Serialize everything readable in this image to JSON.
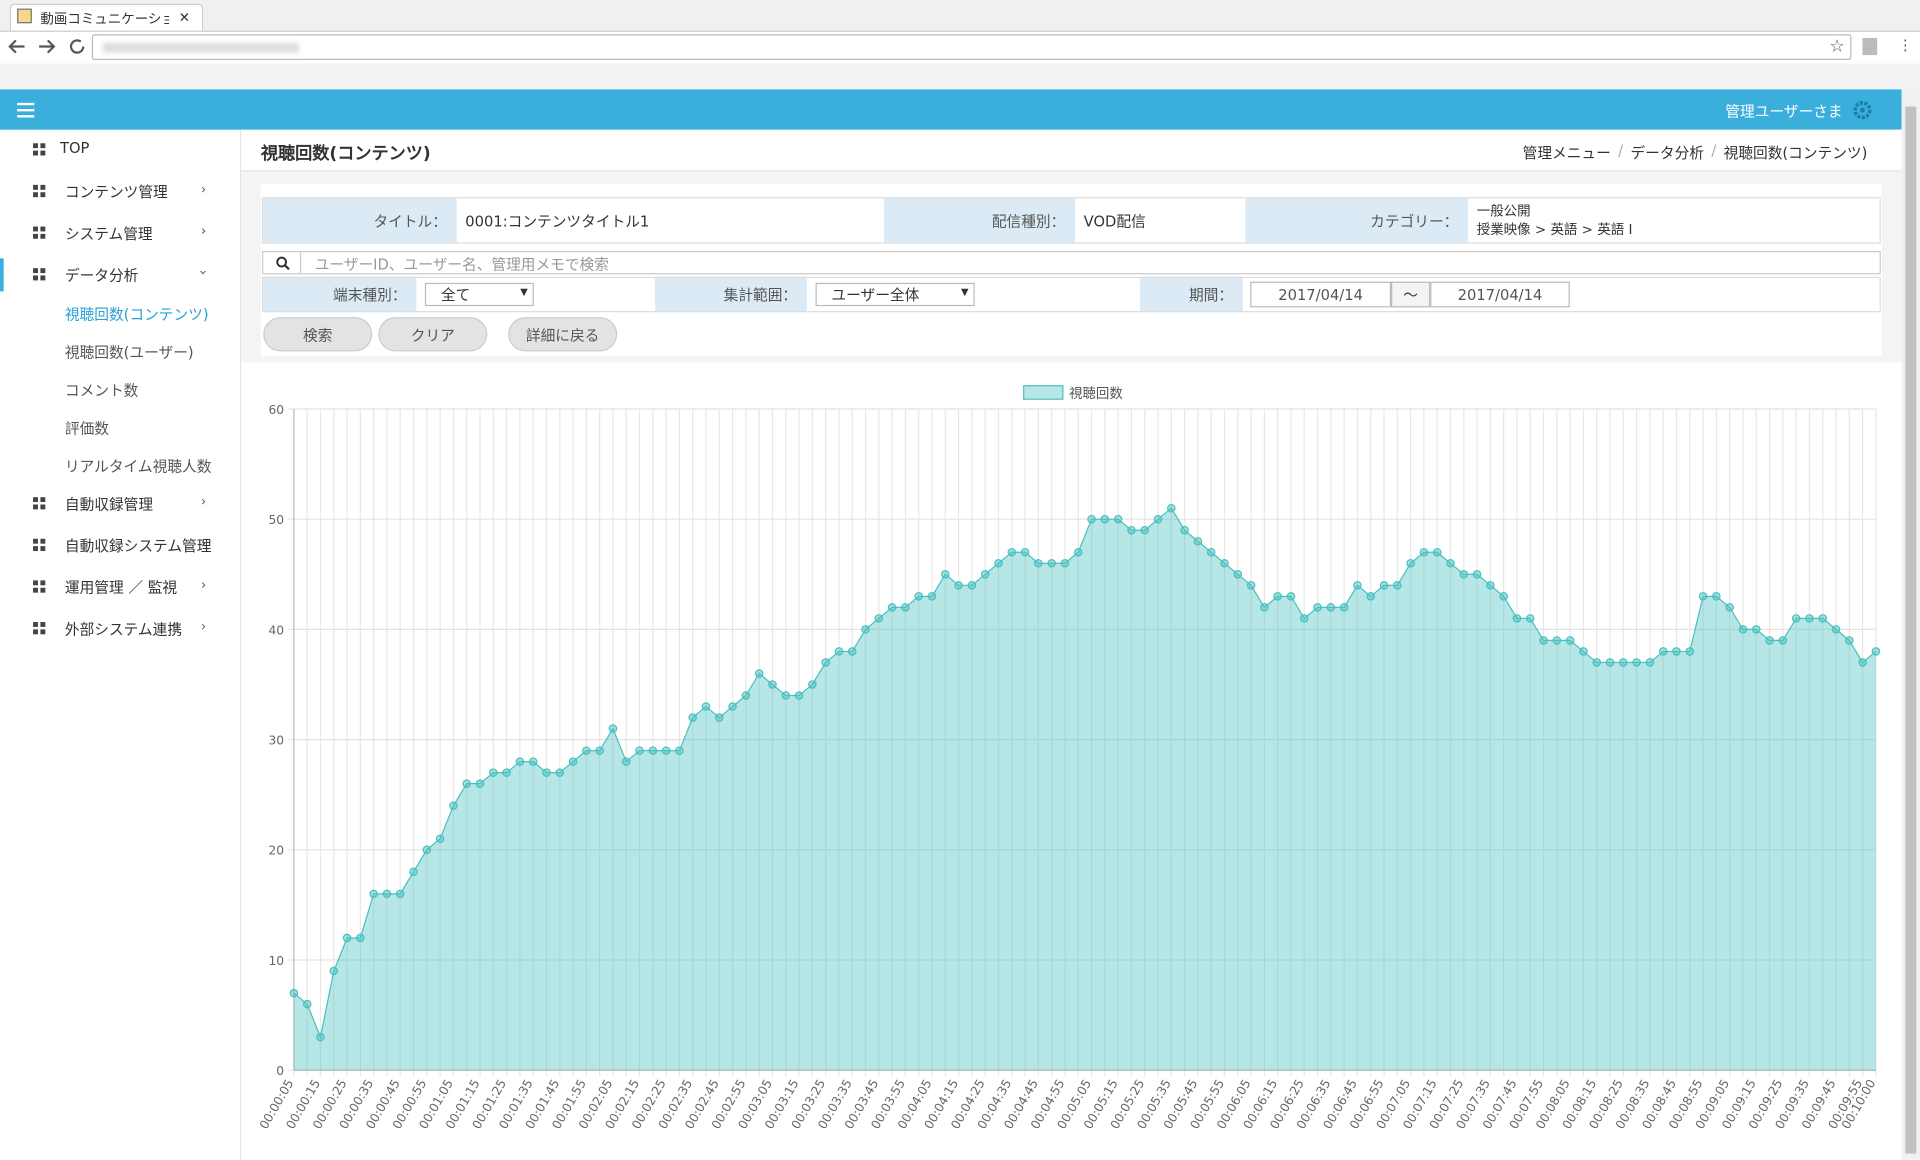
{
  "browser": {
    "tab_title": "動画コミュニケーションサーバー"
  },
  "header": {
    "user": "管理ユーザーさま"
  },
  "sidebar": {
    "items": [
      {
        "label": "TOP"
      },
      {
        "label": "コンテンツ管理"
      },
      {
        "label": "システム管理"
      },
      {
        "label": "データ分析",
        "children": [
          "視聴回数(コンテンツ)",
          "視聴回数(ユーザー)",
          "コメント数",
          "評価数",
          "リアルタイム視聴人数"
        ]
      },
      {
        "label": "自動収録管理"
      },
      {
        "label": "自動収録システム管理"
      },
      {
        "label": "運用管理 ／ 監視"
      },
      {
        "label": "外部システム連携"
      }
    ]
  },
  "page": {
    "title": "視聴回数(コンテンツ)",
    "breadcrumb": [
      "管理メニュー",
      "データ分析",
      "視聴回数(コンテンツ)"
    ],
    "breadcrumb_separator": "/"
  },
  "form": {
    "title_label": "タイトル：",
    "title_value": "0001:コンテンツタイトル1",
    "type_label": "配信種別：",
    "type_value": "VOD配信",
    "category_label": "カテゴリー：",
    "category_value": [
      "一般公開",
      "授業映像 > 英語 > 英語 I"
    ],
    "search_placeholder": "ユーザーID、ユーザー名、管理用メモで検索",
    "device_label": "端末種別：",
    "device_value": "全て",
    "scope_label": "集計範囲：",
    "scope_value": "ユーザー全体",
    "period_label": "期間：",
    "date_from": "2017/04/14",
    "date_sep": "〜",
    "date_to": "2017/04/14",
    "buttons": [
      "検索",
      "クリア",
      "詳細に戻る"
    ]
  },
  "chart_data": {
    "type": "line",
    "fill": true,
    "legend": "top",
    "color": "#4bc0c0",
    "grid": true,
    "series": [
      {
        "name": "視聴回数",
        "color": "#4bc0c0",
        "values": [
          7,
          6,
          3,
          9,
          12,
          12,
          16,
          16,
          16,
          18,
          20,
          21,
          24,
          26,
          26,
          27,
          27,
          28,
          28,
          27,
          27,
          28,
          29,
          29,
          31,
          28,
          29,
          29,
          29,
          29,
          32,
          33,
          32,
          33,
          34,
          36,
          35,
          34,
          34,
          35,
          37,
          38,
          38,
          40,
          41,
          42,
          42,
          43,
          43,
          45,
          44,
          44,
          45,
          46,
          47,
          47,
          46,
          46,
          46,
          47,
          50,
          50,
          50,
          49,
          49,
          50,
          51,
          49,
          48,
          47,
          46,
          45,
          44,
          42,
          43,
          43,
          41,
          42,
          42,
          42,
          44,
          43,
          44,
          44,
          46,
          47,
          47,
          46,
          45,
          45,
          44,
          43,
          41,
          41,
          39,
          39,
          39,
          38,
          37,
          37,
          37,
          37,
          37,
          38,
          38,
          38,
          43,
          43,
          42,
          40,
          40,
          39,
          39,
          41,
          41,
          41,
          40,
          39,
          37,
          38
        ]
      }
    ],
    "categories": [
      "00:00:05",
      null,
      "00:00:15",
      null,
      "00:00:25",
      null,
      "00:00:35",
      null,
      "00:00:45",
      null,
      "00:00:55",
      null,
      "00:01:05",
      null,
      "00:01:15",
      null,
      "00:01:25",
      null,
      "00:01:35",
      null,
      "00:01:45",
      null,
      "00:01:55",
      null,
      "00:02:05",
      null,
      "00:02:15",
      null,
      "00:02:25",
      null,
      "00:02:35",
      null,
      "00:02:45",
      null,
      "00:02:55",
      null,
      "00:03:05",
      null,
      "00:03:15",
      null,
      "00:03:25",
      null,
      "00:03:35",
      null,
      "00:03:45",
      null,
      "00:03:55",
      null,
      "00:04:05",
      null,
      "00:04:15",
      null,
      "00:04:25",
      null,
      "00:04:35",
      null,
      "00:04:45",
      null,
      "00:04:55",
      null,
      "00:05:05",
      null,
      "00:05:15",
      null,
      "00:05:25",
      null,
      "00:05:35",
      null,
      "00:05:45",
      null,
      "00:05:55",
      null,
      "00:06:05",
      null,
      "00:06:15",
      null,
      "00:06:25",
      null,
      "00:06:35",
      null,
      "00:06:45",
      null,
      "00:06:55",
      null,
      "00:07:05",
      null,
      "00:07:15",
      null,
      "00:07:25",
      null,
      "00:07:35",
      null,
      "00:07:45",
      null,
      "00:07:55",
      null,
      "00:08:05",
      null,
      "00:08:15",
      null,
      "00:08:25",
      null,
      "00:08:35",
      null,
      "00:08:45",
      null,
      "00:08:55",
      null,
      "00:09:05",
      null,
      "00:09:15",
      null,
      "00:09:25",
      null,
      "00:09:35",
      null,
      "00:09:45",
      null,
      "00:09:55",
      "00:10:00"
    ],
    "ylim": [
      0,
      60
    ],
    "yticks": [
      0,
      10,
      20,
      30,
      40,
      50,
      60
    ]
  }
}
